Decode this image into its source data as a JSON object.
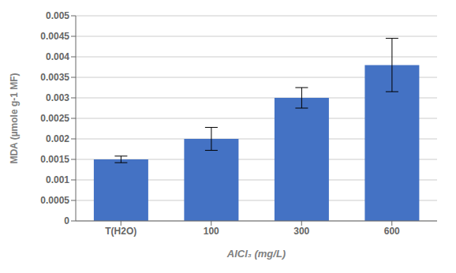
{
  "chart_data": {
    "type": "bar",
    "categories": [
      "T(H2O)",
      "100",
      "300",
      "600"
    ],
    "values": [
      0.0015,
      0.002,
      0.003,
      0.0038
    ],
    "errors": [
      8e-05,
      0.00028,
      0.00025,
      0.00065
    ],
    "color": "#4472C4",
    "xlabel": "AlCl₃ (mg/L)",
    "ylabel": "MDA (µmole g-1 MF)",
    "ylim": [
      0,
      0.005
    ],
    "yticks": [
      0,
      0.0005,
      0.001,
      0.0015,
      0.002,
      0.0025,
      0.003,
      0.0035,
      0.004,
      0.0045,
      0.005
    ],
    "grid": true
  }
}
